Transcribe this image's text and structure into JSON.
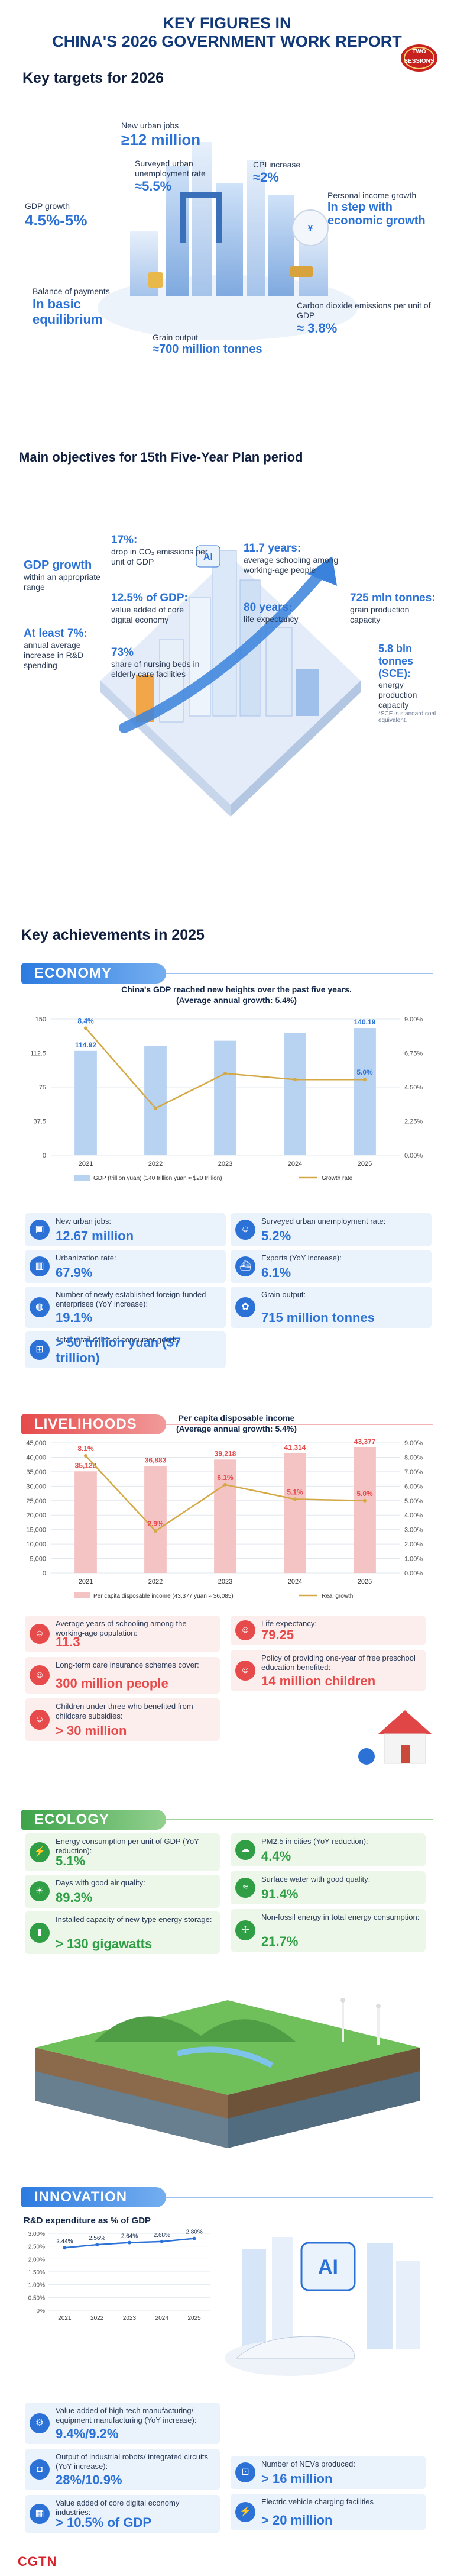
{
  "header": {
    "title_line1": "KEY FIGURES IN",
    "title_line2": "CHINA'S 2026 GOVERNMENT WORK REPORT",
    "badge_top": "TWO",
    "badge_bottom": "SESSIONS"
  },
  "targets": {
    "heading": "Key targets for 2026",
    "jobs_label": "New urban jobs",
    "jobs_value": "≥12 million",
    "unemp_label": "Surveyed urban unemployment rate",
    "unemp_value": "≈5.5%",
    "cpi_label": "CPI increase",
    "cpi_value": "≈2%",
    "income_label": "Personal income growth",
    "income_value": "In step with economic growth",
    "gdp_label": "GDP growth",
    "gdp_value": "4.5%-5%",
    "bop_label": "Balance of payments",
    "bop_value": "In basic equilibrium",
    "co2_label": "Carbon dioxide emissions per unit of GDP",
    "co2_value": "≈ 3.8%",
    "grain_label": "Grain output",
    "grain_value": "≈700 million tonnes"
  },
  "plan": {
    "heading": "Main objectives for 15th Five-Year Plan period",
    "gdp_title": "GDP growth",
    "gdp_desc": "within an appropriate range",
    "rd_value": "At least 7%:",
    "rd_desc": "annual average increase in R&D spending",
    "co2_value": "17%:",
    "co2_desc": "drop in CO₂ emissions per unit of GDP",
    "digital_value": "12.5% of GDP:",
    "digital_desc": "value added of core digital economy",
    "nursing_value": "73%",
    "nursing_desc": "share of nursing beds in elderly care facilities",
    "school_value": "11.7 years:",
    "school_desc": "average schooling among working-age people",
    "life_value": "80 years:",
    "life_desc": "life expectancy",
    "grain_value": "725 mln tonnes:",
    "grain_desc": "grain production capacity",
    "energy_value": "5.8 bln tonnes (SCE):",
    "energy_desc": "energy production capacity",
    "energy_note": "*SCE is standard coal equivalent."
  },
  "achievements": {
    "heading": "Key achievements in 2025"
  },
  "economy": {
    "banner": "ECONOMY",
    "cards": [
      {
        "label": "New urban jobs:",
        "value": "12.67 million",
        "icon": "briefcase-icon"
      },
      {
        "label": "Surveyed urban unemployment rate:",
        "value": "5.2%",
        "icon": "people-icon"
      },
      {
        "label": "Urbanization rate:",
        "value": "67.9%",
        "icon": "city-icon"
      },
      {
        "label": "Exports (YoY increase):",
        "value": "6.1%",
        "icon": "ship-icon"
      },
      {
        "label": "Number of newly established foreign-funded enterprises (YoY increase):",
        "value": "19.1%",
        "icon": "globe-icon"
      },
      {
        "label": "Grain output:",
        "value": "715 million tonnes",
        "icon": "wheat-icon"
      },
      {
        "label": "Total retail sales of consumer goods:",
        "value": "> 50 trillion yuan ($7 trillion)",
        "icon": "cart-icon"
      }
    ]
  },
  "livelihoods": {
    "banner": "LIVELIHOODS",
    "items": [
      {
        "label": "Average years of schooling among the working-age population:",
        "value": "11.3"
      },
      {
        "label": "Life expectancy:",
        "value": "79.25"
      },
      {
        "label": "Long-term care insurance schemes cover:",
        "value": "300 million people"
      },
      {
        "label": "Policy of providing one-year of free preschool education benefited:",
        "value": "14 million children"
      },
      {
        "label": "Children under three who benefited from childcare subsidies:",
        "value": "> 30 million"
      }
    ]
  },
  "ecology": {
    "banner": "ECOLOGY",
    "cards": [
      {
        "label": "Energy consumption per unit of GDP (YoY reduction):",
        "value": "5.1%",
        "icon": "power-icon"
      },
      {
        "label": "PM2.5 in cities (YoY reduction):",
        "value": "4.4%",
        "icon": "cloud-icon"
      },
      {
        "label": "Days with good air quality:",
        "value": "89.3%",
        "icon": "sun-icon"
      },
      {
        "label": "Surface water with good quality:",
        "value": "91.4%",
        "icon": "water-icon"
      },
      {
        "label": "Installed capacity of new-type energy storage:",
        "value": "> 130 gigawatts",
        "icon": "battery-icon"
      },
      {
        "label": "Non-fossil energy in total energy consumption:",
        "value": "21.7%",
        "icon": "turbine-icon"
      }
    ]
  },
  "innovation": {
    "banner": "INNOVATION",
    "cards": [
      {
        "label": "Value added of high-tech manufacturing/ equipment manufacturing (YoY increase):",
        "value": "9.4%/9.2%",
        "icon": "gear-icon"
      },
      {
        "label": "Output of industrial robots/ integrated circuits (YoY increase):",
        "value": "28%/10.9%",
        "icon": "robot-icon"
      },
      {
        "label": "Number of NEVs produced:",
        "value": "> 16 million",
        "icon": "car-icon"
      },
      {
        "label": "Value added of core digital economy industries:",
        "value": "> 10.5% of GDP",
        "icon": "chip-icon"
      },
      {
        "label": "Electric vehicle charging facilities",
        "value": "> 20 million",
        "icon": "charger-icon"
      }
    ],
    "ai_label": "AI"
  },
  "footer": {
    "brand": "CGTN"
  },
  "colors": {
    "accent": "#2c72d6",
    "navy": "#123a7a",
    "line": "#d4a945",
    "bar": "#b8d2f2",
    "red": "#e64a4a",
    "pinkbar": "#f4b5b5"
  },
  "chart_data": [
    {
      "type": "bar",
      "title": "China's GDP reached new heights over the past five years.",
      "subtitle": "(Average annual growth: 5.4%)",
      "categories": [
        "2021",
        "2022",
        "2023",
        "2024",
        "2025"
      ],
      "series": [
        {
          "name": "GDP (trillion yuan) (140 trillion yuan ≈ $20 trillion)",
          "type": "bar",
          "values": [
            114.92,
            120.4,
            126.1,
            134.9,
            140.19
          ],
          "labels": [
            "114.92",
            "",
            "",
            "",
            "140.19"
          ]
        },
        {
          "name": "Growth rate",
          "type": "line",
          "axis": "right",
          "values": [
            8.4,
            3.1,
            5.4,
            5.0,
            5.0
          ],
          "labels": [
            "8.4%",
            "",
            "",
            "",
            "5.0%"
          ]
        }
      ],
      "ylim": [
        0,
        150
      ],
      "yticks": [
        "0",
        "37.5",
        "75",
        "112.5",
        "150"
      ],
      "y2lim": [
        0,
        9
      ],
      "y2ticks": [
        "0.00%",
        "2.25%",
        "4.50%",
        "6.75%",
        "9.00%"
      ],
      "legend": "bottom"
    },
    {
      "type": "bar",
      "title": "Per capita disposable income",
      "subtitle": "(Average annual growth: 5.4%)",
      "categories": [
        "2021",
        "2022",
        "2023",
        "2024",
        "2025"
      ],
      "series": [
        {
          "name": "Per capita disposable income (43,377 yuan ≈ $6,085)",
          "type": "bar",
          "values": [
            35128,
            36883,
            39218,
            41314,
            43377
          ],
          "labels": [
            "35,128",
            "36,883",
            "39,218",
            "41,314",
            "43,377"
          ]
        },
        {
          "name": "Real growth",
          "type": "line",
          "axis": "right",
          "values": [
            8.1,
            2.9,
            6.1,
            5.1,
            5.0
          ],
          "labels": [
            "8.1%",
            "2.9%",
            "6.1%",
            "5.1%",
            "5.0%"
          ]
        }
      ],
      "ylim": [
        0,
        45000
      ],
      "yticks": [
        "0",
        "5,000",
        "10,000",
        "15,000",
        "20,000",
        "25,000",
        "30,000",
        "35,000",
        "40,000",
        "45,000"
      ],
      "y2lim": [
        0,
        9
      ],
      "y2ticks": [
        "0.00%",
        "1.00%",
        "2.00%",
        "3.00%",
        "4.00%",
        "5.00%",
        "6.00%",
        "7.00%",
        "8.00%",
        "9.00%"
      ],
      "legend": "bottom"
    },
    {
      "type": "line",
      "title": "R&D expenditure as % of GDP",
      "categories": [
        "2021",
        "2022",
        "2023",
        "2024",
        "2025"
      ],
      "series": [
        {
          "name": "R&D expenditure as % of GDP",
          "values": [
            2.44,
            2.56,
            2.64,
            2.68,
            2.8
          ],
          "labels": [
            "2.44%",
            "2.56%",
            "2.64%",
            "2.68%",
            "2.80%"
          ]
        }
      ],
      "ylim": [
        0,
        3.0
      ],
      "yticks": [
        "0%",
        "0.50%",
        "1.00%",
        "1.50%",
        "2.00%",
        "2.50%",
        "3.00%"
      ]
    }
  ]
}
